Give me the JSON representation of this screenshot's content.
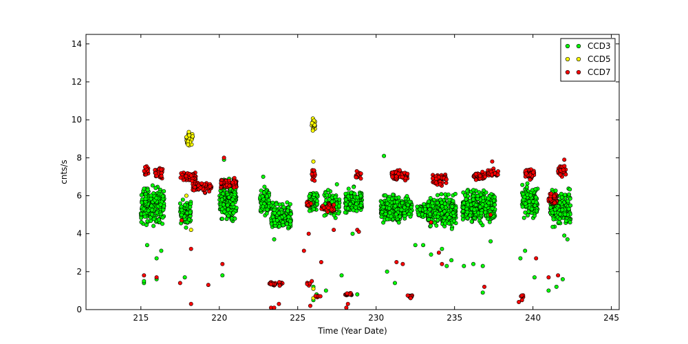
{
  "chart_data": {
    "type": "scatter",
    "xlabel": "Time (Year Date)",
    "ylabel": "cnts/s",
    "xlim": [
      211.5,
      245.5
    ],
    "ylim": [
      0,
      14.5
    ],
    "xticks": [
      215,
      220,
      225,
      230,
      235,
      240,
      245
    ],
    "yticks": [
      0,
      2,
      4,
      6,
      8,
      10,
      12,
      14
    ],
    "grid": false,
    "legend_position": "top-right",
    "colors": {
      "CCD3": "#00ff00",
      "CCD5": "#ffff00",
      "CCD7": "#ff0000"
    },
    "series": [
      {
        "name": "CCD3",
        "color": "#00ff00",
        "clusters": [
          [
            215.0,
            216.5,
            4.2,
            6.8,
            220
          ],
          [
            217.5,
            218.2,
            4.2,
            6.0,
            70
          ],
          [
            220.0,
            221.1,
            4.4,
            7.2,
            220
          ],
          [
            222.6,
            223.2,
            4.7,
            6.6,
            80
          ],
          [
            223.3,
            224.6,
            3.8,
            5.9,
            150
          ],
          [
            225.7,
            226.3,
            4.9,
            6.5,
            50
          ],
          [
            226.7,
            227.7,
            4.5,
            6.6,
            70
          ],
          [
            228.0,
            229.1,
            4.8,
            6.6,
            120
          ],
          [
            230.3,
            231.6,
            4.3,
            6.3,
            180
          ],
          [
            231.6,
            232.3,
            4.5,
            6.2,
            60
          ],
          [
            232.6,
            233.2,
            4.6,
            5.9,
            40
          ],
          [
            233.3,
            235.1,
            4.1,
            6.3,
            260
          ],
          [
            235.5,
            237.6,
            4.3,
            6.6,
            280
          ],
          [
            239.3,
            240.3,
            4.5,
            6.8,
            130
          ],
          [
            241.1,
            242.4,
            4.1,
            6.6,
            170
          ]
        ],
        "points": [
          [
            215.2,
            1.4
          ],
          [
            215.2,
            1.5
          ],
          [
            215.4,
            3.4
          ],
          [
            216.0,
            2.7
          ],
          [
            216.0,
            1.6
          ],
          [
            216.3,
            3.1
          ],
          [
            217.8,
            1.7
          ],
          [
            220.2,
            1.8
          ],
          [
            220.3,
            7.9
          ],
          [
            222.8,
            7.0
          ],
          [
            223.5,
            3.7
          ],
          [
            226.0,
            1.2
          ],
          [
            226.2,
            0.8
          ],
          [
            226.0,
            0.5
          ],
          [
            226.8,
            1.0
          ],
          [
            227.5,
            6.6
          ],
          [
            227.8,
            1.8
          ],
          [
            228.5,
            4.0
          ],
          [
            228.8,
            0.8
          ],
          [
            230.5,
            8.1
          ],
          [
            230.7,
            2.0
          ],
          [
            231.2,
            1.4
          ],
          [
            232.5,
            3.4
          ],
          [
            233.0,
            3.4
          ],
          [
            233.5,
            2.9
          ],
          [
            234.2,
            3.2
          ],
          [
            234.5,
            2.3
          ],
          [
            234.8,
            2.6
          ],
          [
            235.6,
            2.3
          ],
          [
            236.2,
            2.4
          ],
          [
            236.8,
            0.9
          ],
          [
            236.8,
            2.3
          ],
          [
            237.3,
            3.6
          ],
          [
            239.2,
            2.7
          ],
          [
            239.5,
            3.1
          ],
          [
            240.1,
            1.7
          ],
          [
            241.0,
            1.0
          ],
          [
            241.5,
            1.2
          ],
          [
            241.9,
            1.6
          ],
          [
            242.0,
            3.9
          ],
          [
            242.2,
            3.7
          ]
        ]
      },
      {
        "name": "CCD5",
        "color": "#ffff00",
        "clusters": [
          [
            217.9,
            218.3,
            8.5,
            9.5,
            40
          ],
          [
            225.9,
            226.1,
            9.3,
            10.2,
            20
          ]
        ],
        "points": [
          [
            217.9,
            6.0
          ],
          [
            218.2,
            4.2
          ],
          [
            226.0,
            7.8
          ],
          [
            226.0,
            1.1
          ],
          [
            226.0,
            0.6
          ]
        ]
      },
      {
        "name": "CCD7",
        "color": "#ff0000",
        "clusters": [
          [
            215.2,
            215.5,
            6.9,
            7.7,
            25
          ],
          [
            215.9,
            216.4,
            6.7,
            7.7,
            35
          ],
          [
            217.5,
            218.5,
            6.6,
            7.4,
            50
          ],
          [
            218.3,
            219.5,
            6.1,
            6.8,
            70
          ],
          [
            220.1,
            221.1,
            6.3,
            7.0,
            70
          ],
          [
            223.2,
            223.6,
            1.2,
            1.5,
            15
          ],
          [
            223.8,
            224.1,
            1.2,
            1.5,
            10
          ],
          [
            225.5,
            225.9,
            5.3,
            5.8,
            15
          ],
          [
            225.9,
            226.1,
            6.5,
            7.6,
            15
          ],
          [
            225.6,
            225.8,
            1.2,
            1.5,
            8
          ],
          [
            226.1,
            226.5,
            0.6,
            0.8,
            10
          ],
          [
            226.5,
            227.4,
            5.1,
            5.7,
            35
          ],
          [
            228.0,
            228.6,
            0.7,
            0.9,
            15
          ],
          [
            228.7,
            229.1,
            6.8,
            7.4,
            20
          ],
          [
            231.0,
            232.0,
            6.7,
            7.4,
            60
          ],
          [
            232.0,
            232.3,
            0.6,
            0.8,
            12
          ],
          [
            233.6,
            234.5,
            6.4,
            7.3,
            60
          ],
          [
            236.2,
            237.0,
            6.7,
            7.3,
            50
          ],
          [
            237.1,
            237.8,
            6.9,
            7.5,
            35
          ],
          [
            239.2,
            239.4,
            0.6,
            0.8,
            6
          ],
          [
            239.5,
            240.1,
            6.8,
            7.5,
            40
          ],
          [
            241.0,
            241.5,
            5.5,
            6.3,
            40
          ],
          [
            241.6,
            242.1,
            6.9,
            7.7,
            35
          ]
        ],
        "points": [
          [
            215.2,
            1.8
          ],
          [
            216.0,
            1.7
          ],
          [
            217.5,
            1.4
          ],
          [
            217.6,
            4.7
          ],
          [
            218.2,
            0.3
          ],
          [
            218.2,
            3.2
          ],
          [
            219.3,
            1.3
          ],
          [
            220.2,
            2.4
          ],
          [
            220.3,
            8.0
          ],
          [
            223.8,
            0.3
          ],
          [
            223.3,
            0.1
          ],
          [
            223.5,
            0.1
          ],
          [
            225.4,
            3.1
          ],
          [
            225.7,
            4.0
          ],
          [
            225.8,
            0.2
          ],
          [
            225.9,
            1.5
          ],
          [
            226.5,
            2.5
          ],
          [
            227.3,
            4.2
          ],
          [
            228.1,
            0.1
          ],
          [
            228.2,
            0.3
          ],
          [
            228.8,
            4.2
          ],
          [
            228.9,
            4.1
          ],
          [
            231.3,
            2.5
          ],
          [
            231.7,
            2.4
          ],
          [
            232.2,
            0.6
          ],
          [
            233.5,
            4.6
          ],
          [
            234.0,
            3.0
          ],
          [
            234.2,
            2.4
          ],
          [
            236.9,
            1.2
          ],
          [
            237.3,
            5.0
          ],
          [
            237.4,
            7.8
          ],
          [
            239.1,
            0.4
          ],
          [
            239.3,
            0.5
          ],
          [
            240.2,
            2.7
          ],
          [
            241.0,
            1.7
          ],
          [
            241.6,
            1.8
          ],
          [
            242.0,
            7.9
          ]
        ]
      }
    ]
  }
}
